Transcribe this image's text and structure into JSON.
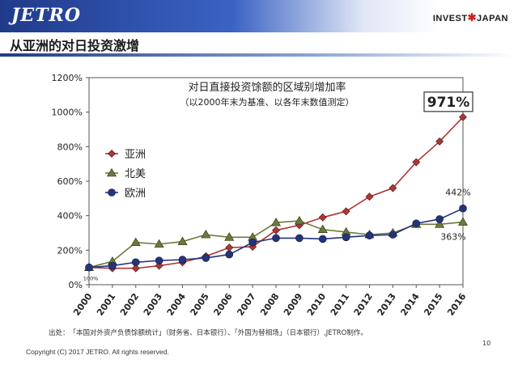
{
  "header": {
    "logo": "JETRO",
    "invest_prefix": "INVEST",
    "invest_mark": "✱",
    "invest_suffix": "JAPAN",
    "slide_title": "从亚洲的对日投资激增"
  },
  "footer": {
    "source": "出处：　「本国对外资产负债馀额统计」（财务省、日本银行）、「外国为替相场」（日本银行）,JETRO制作。",
    "copyright": "Copyright (C) 2017 JETRO. All rights reserved.",
    "page_number": "10"
  },
  "chart_data": {
    "type": "line",
    "title": "对日直接投资馀额的区域别增加率",
    "subtitle": "（以2000年末为基准、以各年末数值测定）",
    "categories": [
      "2000",
      "2001",
      "2002",
      "2003",
      "2004",
      "2005",
      "2006",
      "2007",
      "2008",
      "2009",
      "2010",
      "2011",
      "2012",
      "2013",
      "2014",
      "2015",
      "2016"
    ],
    "ylim": [
      0,
      1200
    ],
    "yticks": [
      "0%",
      "200%",
      "400%",
      "600%",
      "800%",
      "1000%",
      "1200%"
    ],
    "ytick_values": [
      0,
      200,
      400,
      600,
      800,
      1000,
      1200
    ],
    "legend_position": "left",
    "series": [
      {
        "name": "亚洲",
        "color": "#b03535",
        "marker": "diamond",
        "values": [
          100,
          95,
          95,
          110,
          130,
          165,
          215,
          220,
          315,
          345,
          390,
          425,
          510,
          560,
          710,
          830,
          971
        ]
      },
      {
        "name": "北美",
        "color": "#6b7a3a",
        "marker": "triangle",
        "values": [
          100,
          135,
          245,
          235,
          250,
          290,
          275,
          275,
          360,
          370,
          320,
          305,
          290,
          300,
          350,
          350,
          363
        ]
      },
      {
        "name": "欧洲",
        "color": "#24347a",
        "marker": "circle",
        "values": [
          100,
          110,
          130,
          140,
          145,
          155,
          175,
          245,
          270,
          270,
          265,
          275,
          285,
          290,
          355,
          380,
          442
        ]
      }
    ],
    "annotations": [
      {
        "text": "971%",
        "series": "亚洲",
        "style": "boxed"
      },
      {
        "text": "442%",
        "series": "欧洲"
      },
      {
        "text": "363%",
        "series": "北美"
      },
      {
        "text": "100%",
        "series": "start"
      }
    ]
  }
}
